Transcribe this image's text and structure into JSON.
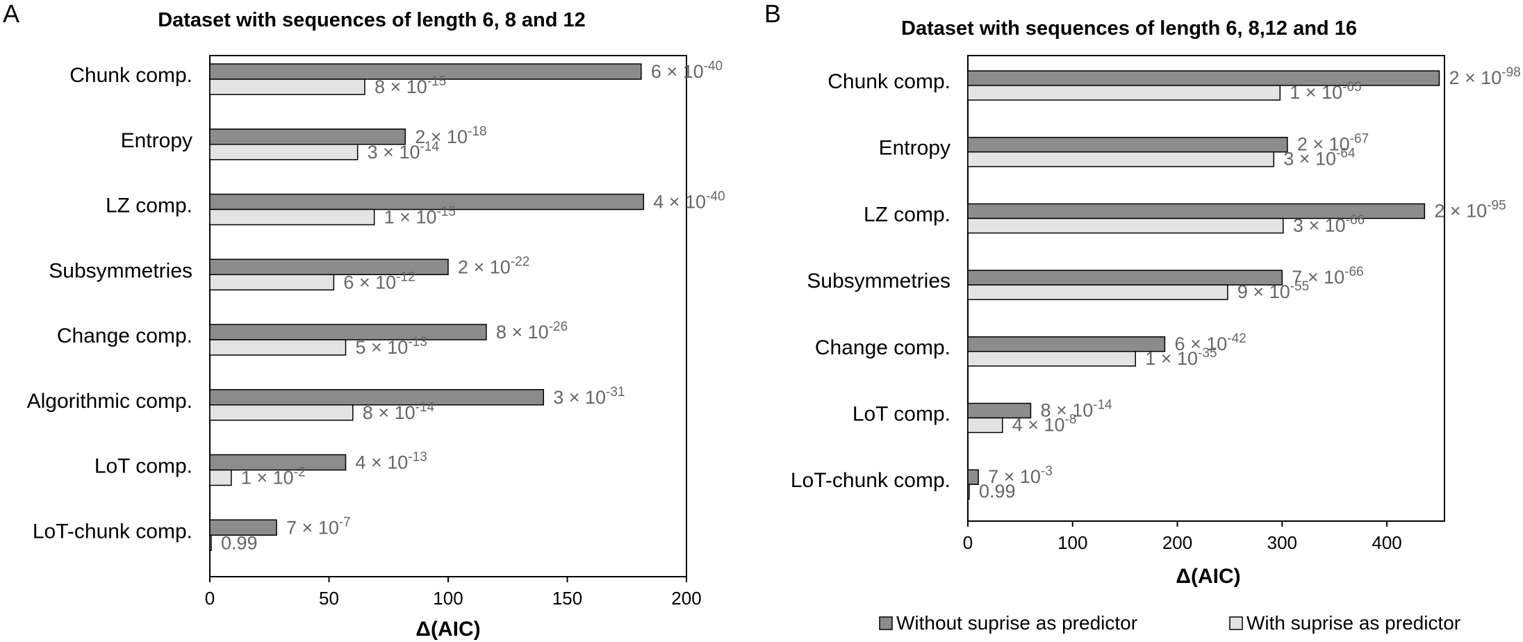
{
  "colors": {
    "without": "#8c8c8c",
    "with": "#e3e3e3",
    "bar_stroke": "#000000",
    "label": "#666666"
  },
  "legend": {
    "without": "Without suprise as predictor",
    "with": "With suprise as predictor"
  },
  "chart_data": [
    {
      "panel": "A",
      "type": "bar",
      "orientation": "horizontal",
      "title": "Dataset with sequences of length 6, 8 and 12",
      "xlabel": "Δ(AIC)",
      "ylabel": "",
      "xlim": [
        0,
        200
      ],
      "xticks": [
        0,
        50,
        100,
        150,
        200
      ],
      "grid": false,
      "legend_position": "bottom",
      "categories": [
        "Chunk comp.",
        "Entropy",
        "LZ comp.",
        "Subsymmetries",
        "Change comp.",
        "Algorithmic comp.",
        "LoT comp.",
        "LoT-chunk comp."
      ],
      "series": [
        {
          "name": "Without suprise as predictor",
          "values": [
            181,
            82,
            182,
            100,
            116,
            140,
            57,
            28
          ],
          "labels": [
            {
              "m": "6",
              "e": "-40"
            },
            {
              "m": "2",
              "e": "-18"
            },
            {
              "m": "4",
              "e": "-40"
            },
            {
              "m": "2",
              "e": "-22"
            },
            {
              "m": "8",
              "e": "-26"
            },
            {
              "m": "3",
              "e": "-31"
            },
            {
              "m": "4",
              "e": "-13"
            },
            {
              "m": "7",
              "e": "-7"
            }
          ]
        },
        {
          "name": "With suprise as predictor",
          "values": [
            65,
            62,
            69,
            52,
            57,
            60,
            9,
            0.5
          ],
          "labels": [
            {
              "m": "8",
              "e": "-15"
            },
            {
              "m": "3",
              "e": "-14"
            },
            {
              "m": "1",
              "e": "-15"
            },
            {
              "m": "6",
              "e": "-12"
            },
            {
              "m": "5",
              "e": "-13"
            },
            {
              "m": "8",
              "e": "-14"
            },
            {
              "m": "1",
              "e": "-2"
            },
            {
              "m": "0.99",
              "e": ""
            }
          ]
        }
      ]
    },
    {
      "panel": "B",
      "type": "bar",
      "orientation": "horizontal",
      "title": "Dataset with sequences of length 6, 8,12 and 16",
      "xlabel": "Δ(AIC)",
      "ylabel": "",
      "xlim": [
        0,
        455
      ],
      "xticks": [
        0,
        100,
        200,
        300,
        400
      ],
      "grid": false,
      "legend_position": "bottom",
      "categories": [
        "Chunk comp.",
        "Entropy",
        "LZ comp.",
        "Subsymmetries",
        "Change comp.",
        "LoT comp.",
        "LoT-chunk comp."
      ],
      "series": [
        {
          "name": "Without suprise as predictor",
          "values": [
            450,
            305,
            436,
            300,
            188,
            60,
            10
          ],
          "labels": [
            {
              "m": "2",
              "e": "-98"
            },
            {
              "m": "2",
              "e": "-67"
            },
            {
              "m": "2",
              "e": "-95"
            },
            {
              "m": "7",
              "e": "-66"
            },
            {
              "m": "6",
              "e": "-42"
            },
            {
              "m": "8",
              "e": "-14"
            },
            {
              "m": "7",
              "e": "-3"
            }
          ]
        },
        {
          "name": "With suprise as predictor",
          "values": [
            298,
            292,
            301,
            248,
            160,
            33,
            1
          ],
          "labels": [
            {
              "m": "1",
              "e": "-65"
            },
            {
              "m": "3",
              "e": "-64"
            },
            {
              "m": "3",
              "e": "-66"
            },
            {
              "m": "9",
              "e": "-55"
            },
            {
              "m": "1",
              "e": "-35"
            },
            {
              "m": "4",
              "e": "-8"
            },
            {
              "m": "0.99",
              "e": ""
            }
          ]
        }
      ]
    }
  ]
}
